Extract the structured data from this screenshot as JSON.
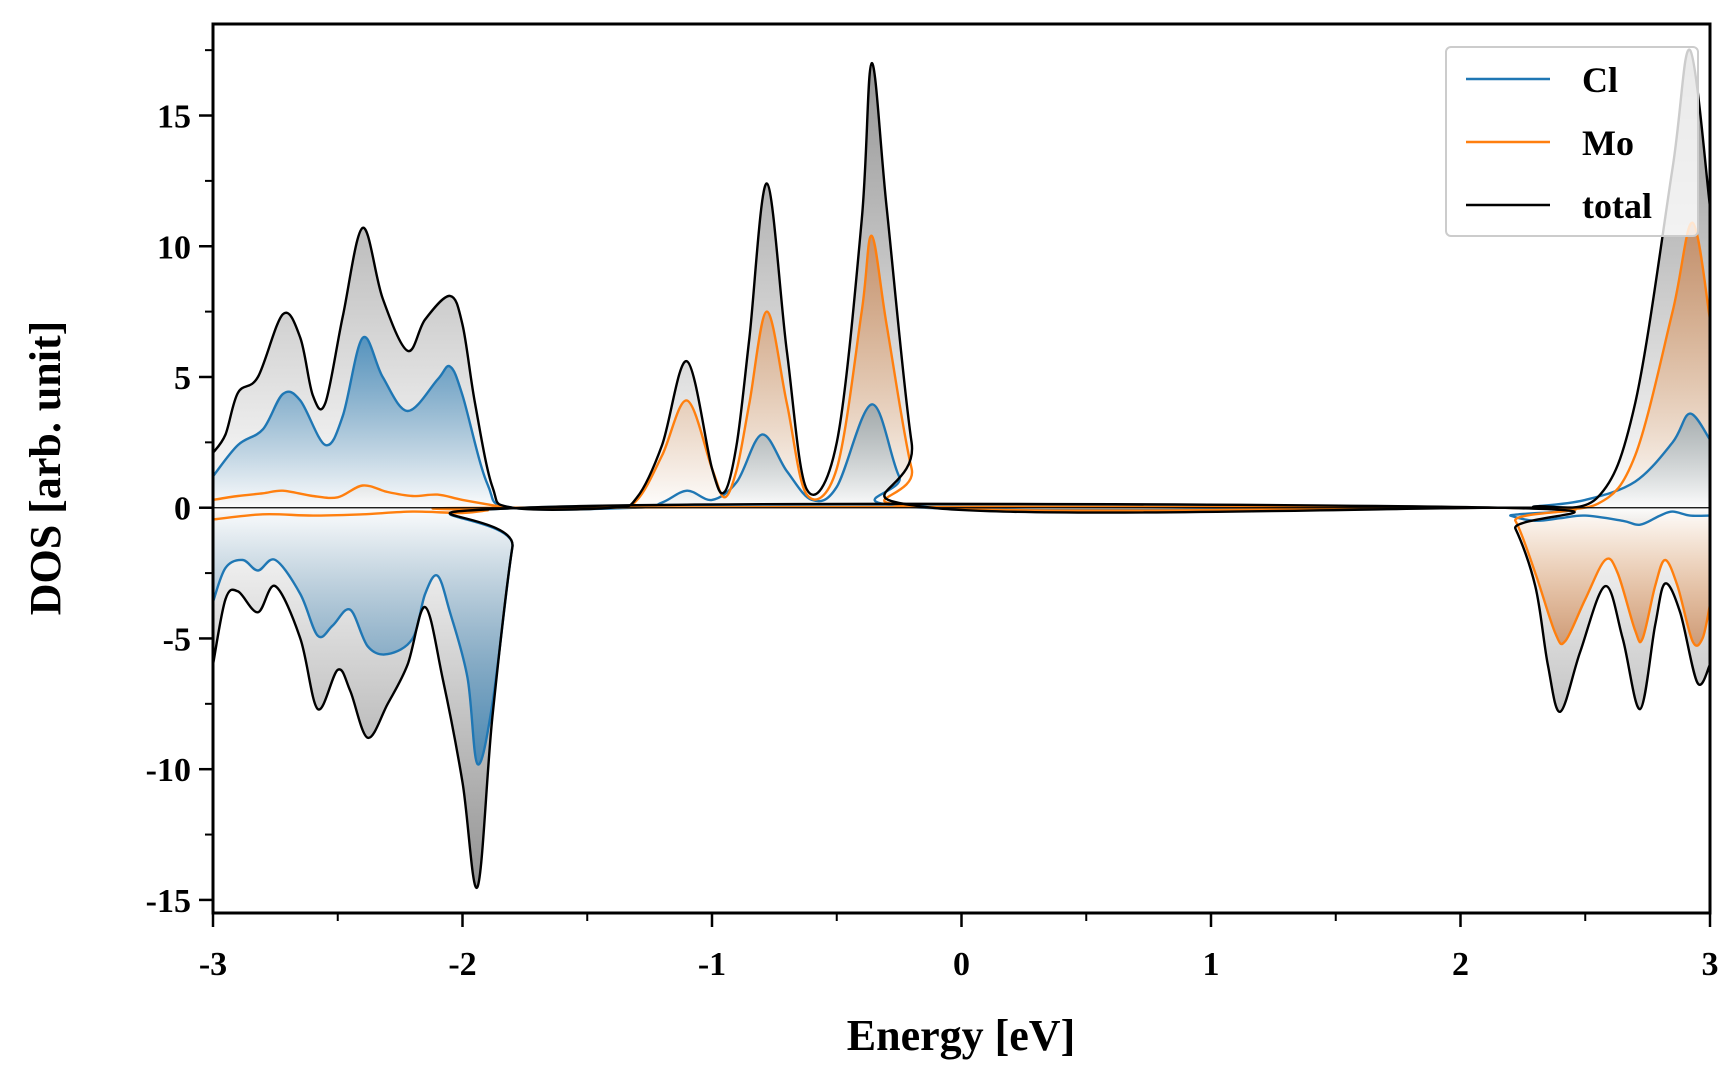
{
  "chart_data": {
    "type": "area",
    "title": "",
    "xlabel": "Energy [eV]",
    "ylabel": "DOS [arb. unit]",
    "xlim": [
      -3,
      3
    ],
    "ylim": [
      -15.5,
      18.5
    ],
    "x_ticks": [
      -3,
      -2,
      -1,
      0,
      1,
      2,
      3
    ],
    "x_tick_labels": [
      "-3",
      "-2",
      "-1",
      "0",
      "1",
      "2",
      "3"
    ],
    "y_ticks": [
      -15,
      -10,
      -5,
      0,
      5,
      10,
      15
    ],
    "y_tick_labels": [
      "-15",
      "-10",
      "-5",
      "0",
      "5",
      "10",
      "15"
    ],
    "grid": false,
    "legend_position": "top-right",
    "colors": {
      "Cl": "#1f77b4",
      "Mo": "#ff7f0e",
      "total": "#000000",
      "fill": "#7f7f7f"
    },
    "series": [
      {
        "name": "Cl",
        "color": "#1f77b4",
        "up": [
          [
            -3.0,
            1.2
          ],
          [
            -2.9,
            2.4
          ],
          [
            -2.8,
            3.0
          ],
          [
            -2.72,
            4.35
          ],
          [
            -2.65,
            4.1
          ],
          [
            -2.55,
            2.4
          ],
          [
            -2.48,
            3.5
          ],
          [
            -2.4,
            6.5
          ],
          [
            -2.32,
            5.0
          ],
          [
            -2.22,
            3.7
          ],
          [
            -2.1,
            4.9
          ],
          [
            -2.05,
            5.4
          ],
          [
            -2.0,
            4.3
          ],
          [
            -1.9,
            0.9
          ],
          [
            -1.8,
            0.0
          ],
          [
            -1.3,
            0.0
          ],
          [
            -1.2,
            0.2
          ],
          [
            -1.1,
            0.65
          ],
          [
            -1.0,
            0.3
          ],
          [
            -0.9,
            1.0
          ],
          [
            -0.8,
            2.8
          ],
          [
            -0.7,
            1.4
          ],
          [
            -0.6,
            0.3
          ],
          [
            -0.5,
            0.8
          ],
          [
            -0.36,
            3.95
          ],
          [
            -0.25,
            1.2
          ],
          [
            -0.15,
            0.0
          ],
          [
            2.15,
            0.0
          ],
          [
            2.3,
            0.05
          ],
          [
            2.5,
            0.3
          ],
          [
            2.7,
            1.0
          ],
          [
            2.85,
            2.5
          ],
          [
            2.92,
            3.6
          ],
          [
            3.0,
            2.6
          ]
        ],
        "down": [
          [
            -3.0,
            -3.6
          ],
          [
            -2.95,
            -2.3
          ],
          [
            -2.88,
            -2.0
          ],
          [
            -2.82,
            -2.4
          ],
          [
            -2.75,
            -2.0
          ],
          [
            -2.65,
            -3.3
          ],
          [
            -2.58,
            -4.9
          ],
          [
            -2.52,
            -4.5
          ],
          [
            -2.45,
            -3.9
          ],
          [
            -2.38,
            -5.3
          ],
          [
            -2.3,
            -5.6
          ],
          [
            -2.2,
            -5.0
          ],
          [
            -2.15,
            -3.3
          ],
          [
            -2.1,
            -2.6
          ],
          [
            -2.05,
            -4.0
          ],
          [
            -1.98,
            -6.5
          ],
          [
            -1.94,
            -9.8
          ],
          [
            -1.88,
            -7.5
          ],
          [
            -1.8,
            -1.5
          ],
          [
            -1.75,
            0.0
          ],
          [
            2.15,
            0.0
          ],
          [
            2.2,
            -0.3
          ],
          [
            2.3,
            -0.5
          ],
          [
            2.4,
            -0.4
          ],
          [
            2.5,
            -0.3
          ],
          [
            2.65,
            -0.5
          ],
          [
            2.72,
            -0.65
          ],
          [
            2.8,
            -0.3
          ],
          [
            2.85,
            -0.15
          ],
          [
            2.92,
            -0.3
          ],
          [
            3.0,
            -0.3
          ]
        ]
      },
      {
        "name": "Mo",
        "color": "#ff7f0e",
        "up": [
          [
            -3.0,
            0.3
          ],
          [
            -2.9,
            0.45
          ],
          [
            -2.8,
            0.55
          ],
          [
            -2.72,
            0.65
          ],
          [
            -2.6,
            0.45
          ],
          [
            -2.5,
            0.4
          ],
          [
            -2.4,
            0.85
          ],
          [
            -2.3,
            0.6
          ],
          [
            -2.2,
            0.45
          ],
          [
            -2.1,
            0.5
          ],
          [
            -2.0,
            0.3
          ],
          [
            -1.85,
            0.05
          ],
          [
            -1.8,
            0.0
          ],
          [
            -1.4,
            0.0
          ],
          [
            -1.3,
            0.3
          ],
          [
            -1.2,
            2.0
          ],
          [
            -1.1,
            4.1
          ],
          [
            -1.0,
            1.5
          ],
          [
            -0.95,
            0.4
          ],
          [
            -0.9,
            1.5
          ],
          [
            -0.85,
            4.0
          ],
          [
            -0.78,
            7.5
          ],
          [
            -0.7,
            4.0
          ],
          [
            -0.62,
            0.5
          ],
          [
            -0.5,
            1.5
          ],
          [
            -0.4,
            7.5
          ],
          [
            -0.36,
            10.4
          ],
          [
            -0.3,
            7.0
          ],
          [
            -0.2,
            1.5
          ],
          [
            -0.12,
            0.0
          ],
          [
            2.15,
            0.0
          ],
          [
            2.3,
            0.0
          ],
          [
            2.55,
            0.15
          ],
          [
            2.7,
            2.0
          ],
          [
            2.85,
            7.5
          ],
          [
            2.93,
            10.9
          ],
          [
            3.0,
            7.2
          ]
        ],
        "down": [
          [
            -3.0,
            -0.45
          ],
          [
            -2.8,
            -0.25
          ],
          [
            -2.6,
            -0.3
          ],
          [
            -2.4,
            -0.25
          ],
          [
            -2.2,
            -0.15
          ],
          [
            -2.0,
            -0.2
          ],
          [
            -1.9,
            -0.1
          ],
          [
            -1.8,
            0.0
          ],
          [
            2.15,
            0.0
          ],
          [
            2.22,
            -0.5
          ],
          [
            2.3,
            -2.5
          ],
          [
            2.38,
            -4.8
          ],
          [
            2.42,
            -5.1
          ],
          [
            2.5,
            -3.5
          ],
          [
            2.58,
            -2.0
          ],
          [
            2.63,
            -2.5
          ],
          [
            2.7,
            -4.7
          ],
          [
            2.73,
            -5.0
          ],
          [
            2.78,
            -3.0
          ],
          [
            2.82,
            -2.0
          ],
          [
            2.87,
            -3.0
          ],
          [
            2.93,
            -5.1
          ],
          [
            2.97,
            -5.0
          ],
          [
            3.0,
            -3.7
          ]
        ]
      },
      {
        "name": "total",
        "color": "#000000",
        "up": [
          [
            -3.0,
            2.1
          ],
          [
            -2.95,
            2.8
          ],
          [
            -2.9,
            4.4
          ],
          [
            -2.82,
            5.0
          ],
          [
            -2.72,
            7.4
          ],
          [
            -2.65,
            6.5
          ],
          [
            -2.6,
            4.3
          ],
          [
            -2.55,
            4.0
          ],
          [
            -2.48,
            7.3
          ],
          [
            -2.4,
            10.7
          ],
          [
            -2.32,
            8.0
          ],
          [
            -2.22,
            6.0
          ],
          [
            -2.15,
            7.2
          ],
          [
            -2.05,
            8.1
          ],
          [
            -2.0,
            7.0
          ],
          [
            -1.95,
            4.0
          ],
          [
            -1.88,
            0.8
          ],
          [
            -1.8,
            0.0
          ],
          [
            -1.4,
            0.0
          ],
          [
            -1.3,
            0.4
          ],
          [
            -1.2,
            2.4
          ],
          [
            -1.1,
            5.6
          ],
          [
            -1.0,
            1.5
          ],
          [
            -0.95,
            0.6
          ],
          [
            -0.9,
            2.5
          ],
          [
            -0.85,
            6.5
          ],
          [
            -0.78,
            12.4
          ],
          [
            -0.7,
            6.0
          ],
          [
            -0.62,
            0.7
          ],
          [
            -0.5,
            2.5
          ],
          [
            -0.4,
            11.0
          ],
          [
            -0.36,
            17.0
          ],
          [
            -0.3,
            11.5
          ],
          [
            -0.2,
            2.5
          ],
          [
            -0.12,
            0.0
          ],
          [
            2.15,
            0.0
          ],
          [
            2.3,
            0.05
          ],
          [
            2.55,
            0.4
          ],
          [
            2.7,
            4.0
          ],
          [
            2.85,
            13.0
          ],
          [
            2.92,
            17.5
          ],
          [
            3.0,
            11.5
          ]
        ],
        "down": [
          [
            -3.0,
            -6.0
          ],
          [
            -2.95,
            -3.5
          ],
          [
            -2.9,
            -3.2
          ],
          [
            -2.82,
            -4.0
          ],
          [
            -2.75,
            -3.0
          ],
          [
            -2.65,
            -5.0
          ],
          [
            -2.58,
            -7.7
          ],
          [
            -2.5,
            -6.2
          ],
          [
            -2.45,
            -7.0
          ],
          [
            -2.38,
            -8.8
          ],
          [
            -2.3,
            -7.5
          ],
          [
            -2.22,
            -6.0
          ],
          [
            -2.15,
            -3.8
          ],
          [
            -2.08,
            -6.5
          ],
          [
            -2.0,
            -10.5
          ],
          [
            -1.94,
            -14.5
          ],
          [
            -1.88,
            -8.0
          ],
          [
            -1.8,
            -1.5
          ],
          [
            -1.75,
            0.0
          ],
          [
            2.15,
            0.0
          ],
          [
            2.22,
            -0.8
          ],
          [
            2.3,
            -3.0
          ],
          [
            2.35,
            -6.0
          ],
          [
            2.4,
            -7.8
          ],
          [
            2.48,
            -5.5
          ],
          [
            2.58,
            -3.0
          ],
          [
            2.65,
            -5.0
          ],
          [
            2.72,
            -7.7
          ],
          [
            2.78,
            -4.5
          ],
          [
            2.82,
            -2.9
          ],
          [
            2.88,
            -4.0
          ],
          [
            2.95,
            -6.7
          ],
          [
            3.0,
            -6.0
          ]
        ]
      }
    ]
  }
}
